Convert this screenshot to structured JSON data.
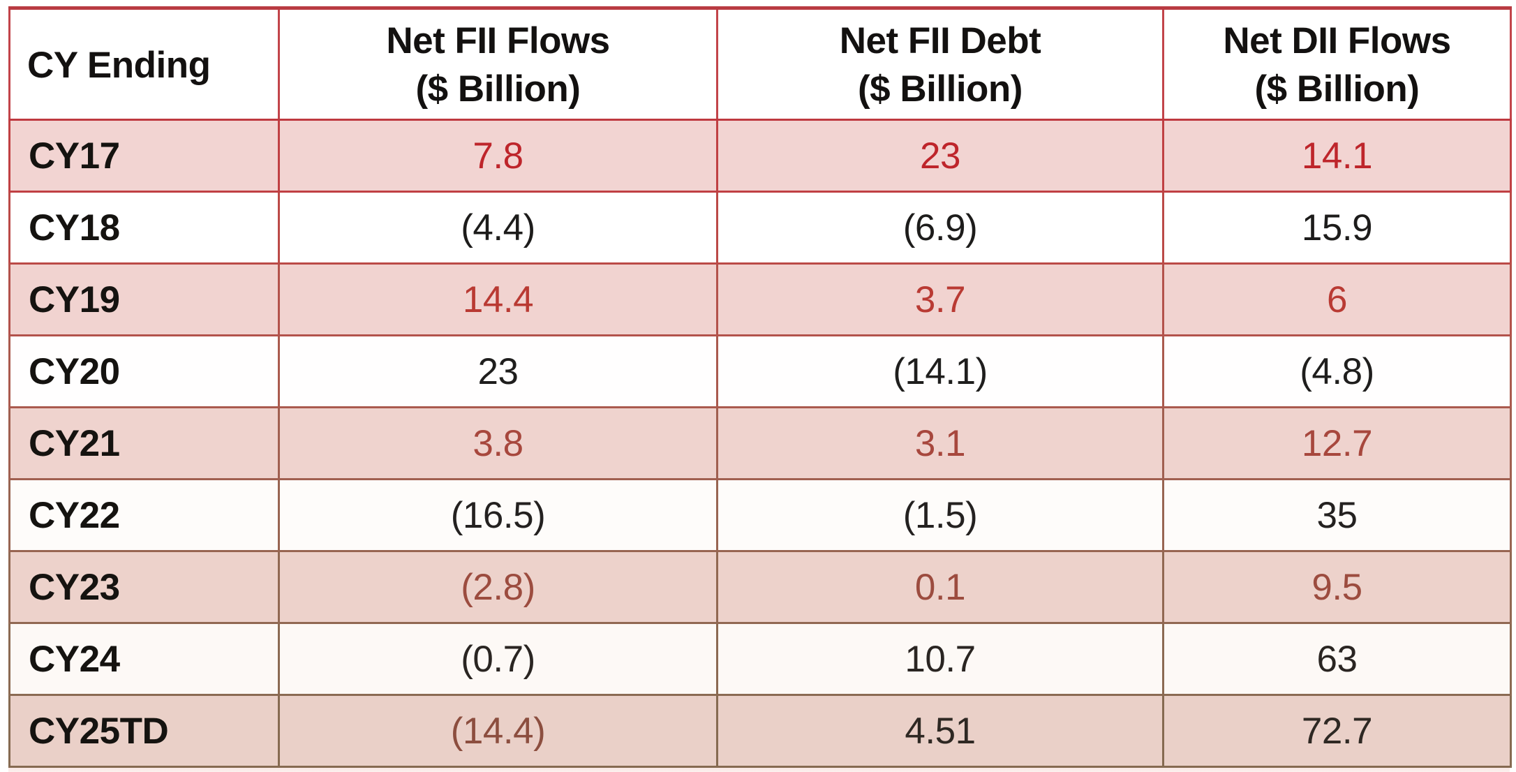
{
  "table": {
    "header": {
      "bg": "#ffffff",
      "top_border_color": "#b93b42",
      "border_color": "#bf3940",
      "text_color": "#131110"
    },
    "columns": [
      {
        "label": "CY Ending"
      },
      {
        "label": "Net FII Flows\n($ Billion)"
      },
      {
        "label": "Net FII Debt\n($ Billion)"
      },
      {
        "label": "Net DII Flows\n($ Billion)"
      }
    ],
    "rows": [
      {
        "label": "CY17",
        "values": [
          "7.8",
          "23",
          "14.1"
        ],
        "value_colors": [
          "#be252b",
          "#be252b",
          "#be252b"
        ],
        "bg": "#f2d4d2",
        "border": "#c04043"
      },
      {
        "label": "CY18",
        "values": [
          "(4.4)",
          "(6.9)",
          "15.9"
        ],
        "value_colors": [
          "#1d1c1b",
          "#1d1c1b",
          "#1d1c1b"
        ],
        "bg": "#ffffff",
        "border": "#bb4a47"
      },
      {
        "label": "CY19",
        "values": [
          "14.4",
          "3.7",
          "6"
        ],
        "value_colors": [
          "#b93a33",
          "#b93a33",
          "#b93a33"
        ],
        "bg": "#f1d3d0",
        "border": "#b3524b"
      },
      {
        "label": "CY20",
        "values": [
          "23",
          "(14.1)",
          "(4.8)"
        ],
        "value_colors": [
          "#1f1e1d",
          "#1f1e1d",
          "#1f1e1d"
        ],
        "bg": "#fffefe",
        "border": "#aa5a4e"
      },
      {
        "label": "CY21",
        "values": [
          "3.8",
          "3.1",
          "12.7"
        ],
        "value_colors": [
          "#a7473d",
          "#a7473d",
          "#a7473d"
        ],
        "bg": "#efd3ce",
        "border": "#a05f50"
      },
      {
        "label": "CY22",
        "values": [
          "(16.5)",
          "(1.5)",
          "35"
        ],
        "value_colors": [
          "#242120",
          "#242120",
          "#242120"
        ],
        "bg": "#fefcfa",
        "border": "#986552"
      },
      {
        "label": "CY23",
        "values": [
          "(2.8)",
          "0.1",
          "9.5"
        ],
        "value_colors": [
          "#9c4c3f",
          "#9c4c3f",
          "#9c4c3f"
        ],
        "bg": "#edd2cb",
        "border": "#916852"
      },
      {
        "label": "CY24",
        "values": [
          "(0.7)",
          "10.7",
          "63"
        ],
        "value_colors": [
          "#2a2522",
          "#2a2522",
          "#2a2522"
        ],
        "bg": "#fdf9f6",
        "border": "#8b6a52"
      },
      {
        "label": "CY25TD",
        "values": [
          "(14.4)",
          "4.51",
          "72.7"
        ],
        "value_colors": [
          "#8c4e3f",
          "#2e2823",
          "#2e2823"
        ],
        "bg": "#ead0c8",
        "border": "#866a51"
      }
    ]
  },
  "chart_data": {
    "type": "table",
    "columns": [
      "CY Ending",
      "Net FII Flows ($ Billion)",
      "Net FII Debt ($ Billion)",
      "Net DII Flows ($ Billion)"
    ],
    "categories": [
      "CY17",
      "CY18",
      "CY19",
      "CY20",
      "CY21",
      "CY22",
      "CY23",
      "CY24",
      "CY25TD"
    ],
    "series": [
      {
        "name": "Net FII Flows ($ Billion)",
        "values": [
          7.8,
          -4.4,
          14.4,
          23,
          3.8,
          -16.5,
          -2.8,
          -0.7,
          -14.4
        ]
      },
      {
        "name": "Net FII Debt ($ Billion)",
        "values": [
          23,
          -6.9,
          3.7,
          -14.1,
          3.1,
          -1.5,
          0.1,
          10.7,
          4.51
        ]
      },
      {
        "name": "Net DII Flows ($ Billion)",
        "values": [
          14.1,
          15.9,
          6,
          -4.8,
          12.7,
          35,
          9.5,
          63,
          72.7
        ]
      }
    ],
    "negative_format": "parentheses",
    "grid": true,
    "legend_position": "none"
  }
}
